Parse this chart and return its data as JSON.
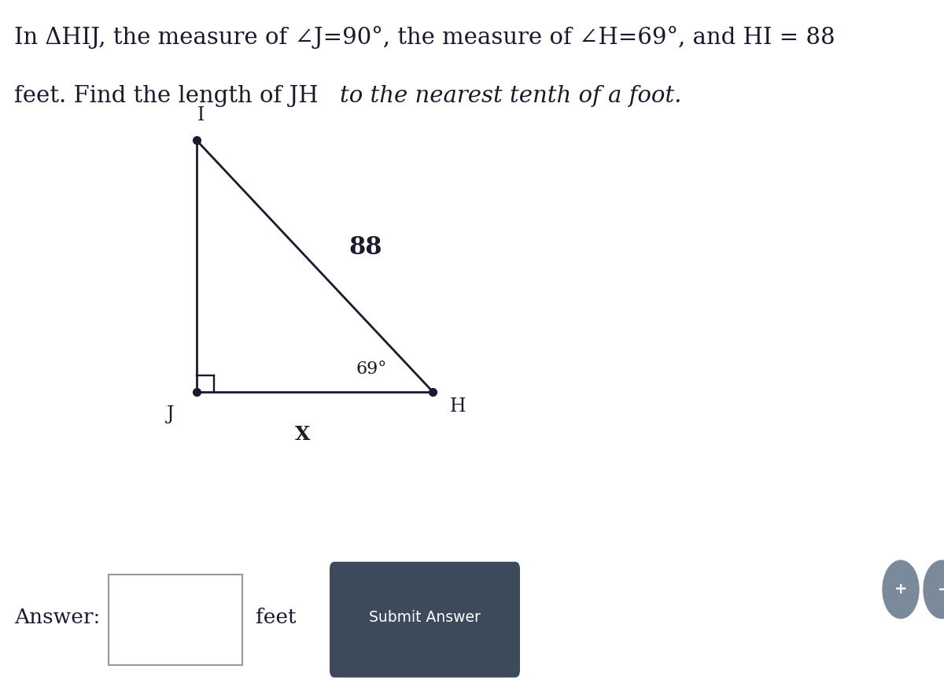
{
  "title_line1": "In ΔHIJ, the measure of ∠J=90°, the measure of ∠H=69°, and HI = 88",
  "title_line2_normal": "feet. Find the length of JH ",
  "title_line2_italic": "to the nearest tenth of a foot.",
  "background_color": "#ffffff",
  "label_J": "J",
  "label_I": "I",
  "label_H": "H",
  "label_X": "X",
  "label_88": "88",
  "label_69": "69°",
  "line_color": "#1a1a2e",
  "line_width": 2.0,
  "dot_color": "#1a1a2e",
  "answer_box_label": "Answer:",
  "answer_feet": "feet",
  "submit_label": "Submit Answer",
  "submit_bg": "#3d4a5c",
  "submit_fg": "#ffffff",
  "footer_bg": "#eeeeee",
  "plus_minus_bg": "#7a8a9a",
  "plus_minus_fg": "#ffffff",
  "text_color": "#1a1a2e"
}
